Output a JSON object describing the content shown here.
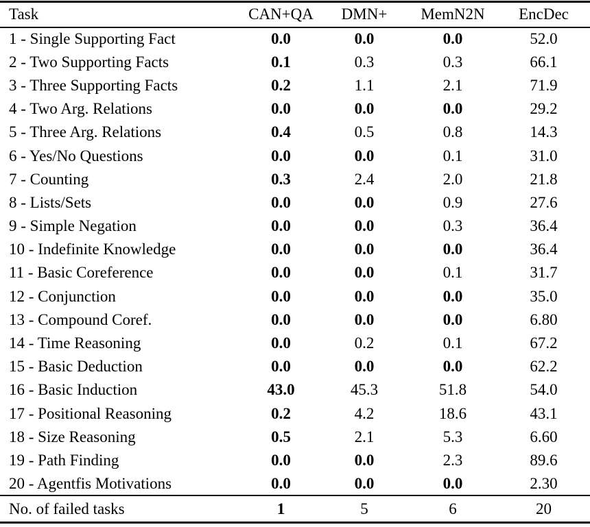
{
  "page": {
    "background_color": "#ffffff",
    "text_color": "#000000",
    "rule_color": "#000000"
  },
  "table": {
    "columns": [
      "Task",
      "CAN+QA",
      "DMN+",
      "MemN2N",
      "EncDec"
    ],
    "rows": [
      {
        "task": "1 - Single Supporting Fact",
        "values": [
          "0.0",
          "0.0",
          "0.0",
          "52.0"
        ],
        "bold": [
          true,
          true,
          true,
          false
        ]
      },
      {
        "task": "2 - Two Supporting Facts",
        "values": [
          "0.1",
          "0.3",
          "0.3",
          "66.1"
        ],
        "bold": [
          true,
          false,
          false,
          false
        ]
      },
      {
        "task": "3 - Three Supporting Facts",
        "values": [
          "0.2",
          "1.1",
          "2.1",
          "71.9"
        ],
        "bold": [
          true,
          false,
          false,
          false
        ]
      },
      {
        "task": "4 - Two Arg. Relations",
        "values": [
          "0.0",
          "0.0",
          "0.0",
          "29.2"
        ],
        "bold": [
          true,
          true,
          true,
          false
        ]
      },
      {
        "task": "5 - Three Arg. Relations",
        "values": [
          "0.4",
          "0.5",
          "0.8",
          "14.3"
        ],
        "bold": [
          true,
          false,
          false,
          false
        ]
      },
      {
        "task": "6 - Yes/No Questions",
        "values": [
          "0.0",
          "0.0",
          "0.1",
          "31.0"
        ],
        "bold": [
          true,
          true,
          false,
          false
        ]
      },
      {
        "task": "7 - Counting",
        "values": [
          "0.3",
          "2.4",
          "2.0",
          "21.8"
        ],
        "bold": [
          true,
          false,
          false,
          false
        ]
      },
      {
        "task": "8 - Lists/Sets",
        "values": [
          "0.0",
          "0.0",
          "0.9",
          "27.6"
        ],
        "bold": [
          true,
          true,
          false,
          false
        ]
      },
      {
        "task": "9 - Simple Negation",
        "values": [
          "0.0",
          "0.0",
          "0.3",
          "36.4"
        ],
        "bold": [
          true,
          true,
          false,
          false
        ]
      },
      {
        "task": "10 - Indefinite Knowledge",
        "values": [
          "0.0",
          "0.0",
          "0.0",
          "36.4"
        ],
        "bold": [
          true,
          true,
          true,
          false
        ]
      },
      {
        "task": "11 - Basic Coreference",
        "values": [
          "0.0",
          "0.0",
          "0.1",
          "31.7"
        ],
        "bold": [
          true,
          true,
          false,
          false
        ]
      },
      {
        "task": "12 - Conjunction",
        "values": [
          "0.0",
          "0.0",
          "0.0",
          "35.0"
        ],
        "bold": [
          true,
          true,
          true,
          false
        ]
      },
      {
        "task": "13 - Compound Coref.",
        "values": [
          "0.0",
          "0.0",
          "0.0",
          "6.80"
        ],
        "bold": [
          true,
          true,
          true,
          false
        ]
      },
      {
        "task": "14 - Time Reasoning",
        "values": [
          "0.0",
          "0.2",
          "0.1",
          "67.2"
        ],
        "bold": [
          true,
          false,
          false,
          false
        ]
      },
      {
        "task": "15 - Basic Deduction",
        "values": [
          "0.0",
          "0.0",
          "0.0",
          "62.2"
        ],
        "bold": [
          true,
          true,
          true,
          false
        ]
      },
      {
        "task": "16 - Basic Induction",
        "values": [
          "43.0",
          "45.3",
          "51.8",
          "54.0"
        ],
        "bold": [
          true,
          false,
          false,
          false
        ]
      },
      {
        "task": "17 - Positional Reasoning",
        "values": [
          "0.2",
          "4.2",
          "18.6",
          "43.1"
        ],
        "bold": [
          true,
          false,
          false,
          false
        ]
      },
      {
        "task": "18 - Size Reasoning",
        "values": [
          "0.5",
          "2.1",
          "5.3",
          "6.60"
        ],
        "bold": [
          true,
          false,
          false,
          false
        ]
      },
      {
        "task": "19 - Path Finding",
        "values": [
          "0.0",
          "0.0",
          "2.3",
          "89.6"
        ],
        "bold": [
          true,
          true,
          false,
          false
        ]
      },
      {
        "task": "20 - Agentfis Motivations",
        "values": [
          "0.0",
          "0.0",
          "0.0",
          "2.30"
        ],
        "bold": [
          true,
          true,
          true,
          false
        ]
      }
    ],
    "footer": {
      "label": "No. of failed tasks",
      "values": [
        "1",
        "5",
        "6",
        "20"
      ],
      "bold": [
        true,
        false,
        false,
        false
      ]
    }
  }
}
